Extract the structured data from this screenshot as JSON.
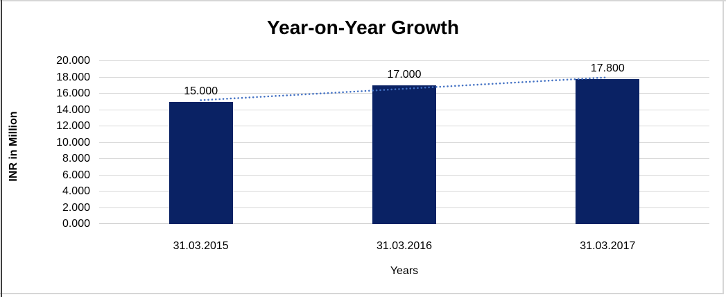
{
  "chart_data": {
    "type": "bar",
    "title": "Year-on-Year Growth",
    "xlabel": "Years",
    "ylabel": "INR in Million",
    "categories": [
      "31.03.2015",
      "31.03.2016",
      "31.03.2017"
    ],
    "values": [
      15.0,
      17.0,
      17.8
    ],
    "value_labels": [
      "15.000",
      "17.000",
      "17.800"
    ],
    "ylim": [
      0,
      20
    ],
    "ytick_step": 2,
    "ytick_labels": [
      "0.000",
      "2.000",
      "4.000",
      "6.000",
      "8.000",
      "10.000",
      "12.000",
      "14.000",
      "16.000",
      "18.000",
      "20.000"
    ],
    "grid": true,
    "legend_position": "none",
    "trendline": {
      "type": "linear",
      "style": "dotted",
      "start_value": 15.2,
      "end_value": 18.0
    },
    "colors": {
      "bar": "#0A2264",
      "trendline": "#4472C4",
      "gridline": "#D9D9D9",
      "axis_line": "#BFBFBF",
      "text": "#000000",
      "frame": "#D6D6D6",
      "left_edge": "#3F3F3F"
    }
  }
}
